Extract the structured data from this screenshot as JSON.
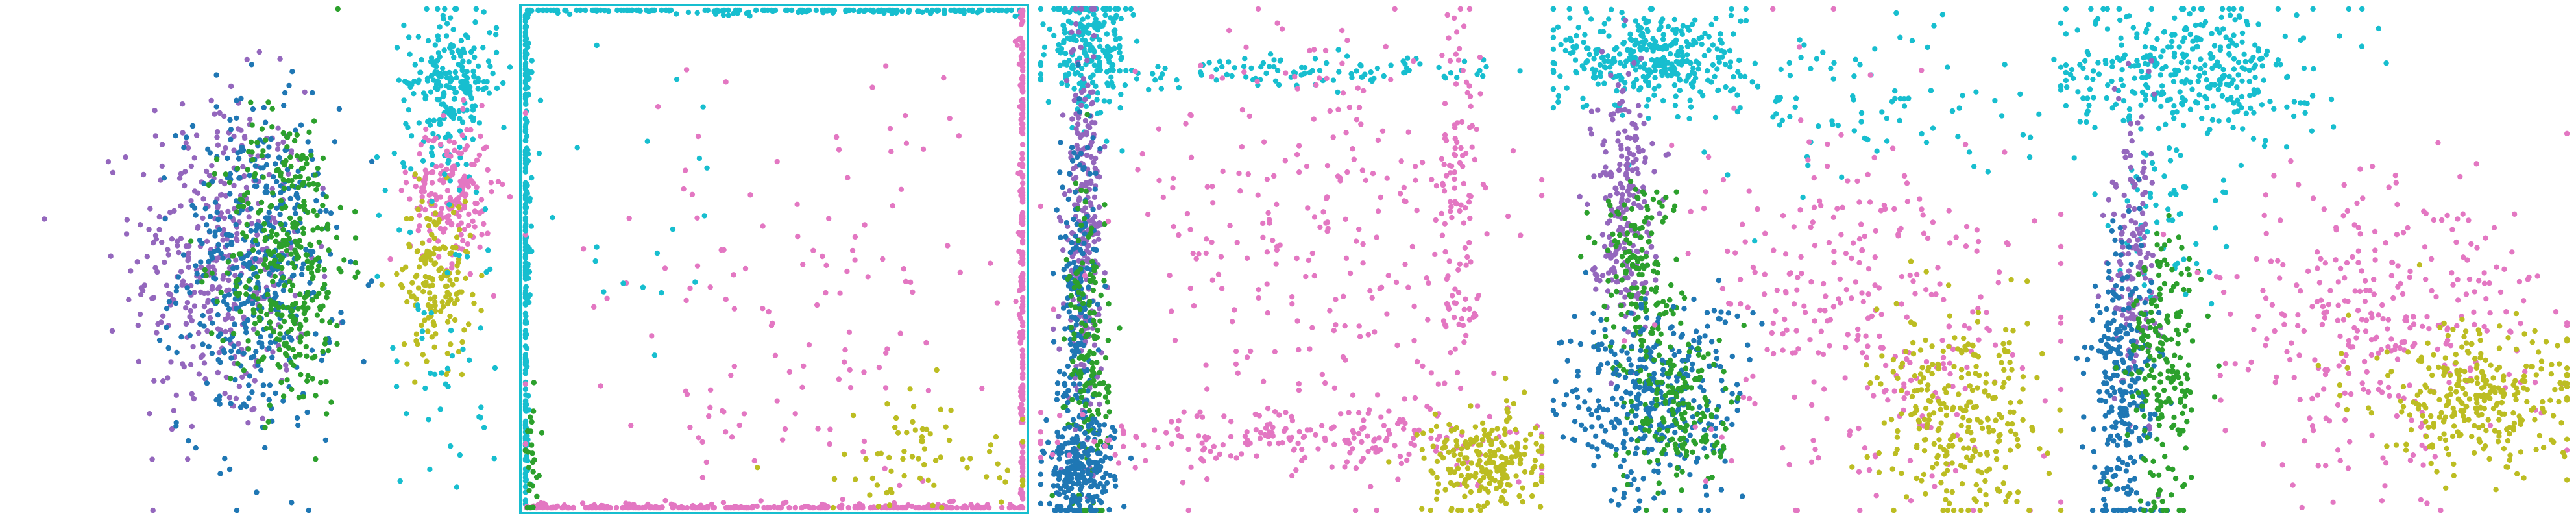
{
  "figure": {
    "description_visible_text": ""
  },
  "colors": {
    "purple": "#9467bd",
    "blue": "#1f77b4",
    "green": "#2ca02c",
    "cyan": "#17becf",
    "pink": "#e377c2",
    "olive": "#bcbd22"
  },
  "chart_data": [
    {
      "type": "scatter",
      "panel": 1,
      "title": "",
      "xlabel": "",
      "ylabel": "",
      "axes_visible": false,
      "grid": false,
      "legend": "none",
      "xlim": [
        0,
        1
      ],
      "ylim": [
        0,
        1
      ],
      "clusters": [
        {
          "color": "purple",
          "cx": 0.43,
          "cy": 0.5,
          "sx": 0.085,
          "sy": 0.17,
          "n": 380
        },
        {
          "color": "blue",
          "cx": 0.5,
          "cy": 0.48,
          "sx": 0.075,
          "sy": 0.16,
          "n": 420
        },
        {
          "color": "green",
          "cx": 0.56,
          "cy": 0.5,
          "sx": 0.06,
          "sy": 0.15,
          "n": 360
        },
        {
          "color": "cyan",
          "cx": 0.88,
          "cy": 0.85,
          "sx": 0.045,
          "sy": 0.07,
          "n": 220
        },
        {
          "color": "pink",
          "cx": 0.88,
          "cy": 0.63,
          "sx": 0.04,
          "sy": 0.07,
          "n": 200
        },
        {
          "color": "olive",
          "cx": 0.85,
          "cy": 0.47,
          "sx": 0.035,
          "sy": 0.08,
          "n": 160
        },
        {
          "color": "cyan",
          "cx": 0.86,
          "cy": 0.4,
          "sx": 0.06,
          "sy": 0.2,
          "n": 60
        }
      ]
    },
    {
      "type": "scatter",
      "panel": 2,
      "title": "",
      "xlabel": "",
      "ylabel": "",
      "axes_visible": false,
      "grid": false,
      "legend": "none",
      "xlim": [
        0,
        1
      ],
      "ylim": [
        0,
        1
      ],
      "frame_points": [
        {
          "side": "left",
          "color": "cyan",
          "n": 260
        },
        {
          "side": "top",
          "color": "cyan",
          "n": 180
        },
        {
          "side": "right",
          "color": "pink",
          "n": 220
        },
        {
          "side": "bottom",
          "color": "pink",
          "n": 240
        }
      ],
      "clusters": [
        {
          "color": "pink",
          "cx": 0.55,
          "cy": 0.35,
          "sx": 0.28,
          "sy": 0.25,
          "n": 160
        },
        {
          "color": "olive",
          "cx": 0.78,
          "cy": 0.1,
          "sx": 0.15,
          "sy": 0.07,
          "n": 70
        },
        {
          "color": "cyan",
          "cx": 0.2,
          "cy": 0.7,
          "sx": 0.2,
          "sy": 0.25,
          "n": 35
        },
        {
          "color": "green",
          "cx": 0.02,
          "cy": 0.1,
          "sx": 0.01,
          "sy": 0.06,
          "n": 25
        }
      ]
    },
    {
      "type": "scatter",
      "panel": 3,
      "title": "",
      "xlabel": "",
      "ylabel": "",
      "axes_visible": false,
      "grid": false,
      "legend": "none",
      "xlim": [
        0,
        1
      ],
      "ylim": [
        0,
        1
      ],
      "clusters": [
        {
          "color": "cyan",
          "cx": 0.1,
          "cy": 0.92,
          "sx": 0.04,
          "sy": 0.06,
          "n": 220
        },
        {
          "color": "cyan",
          "cx": 0.5,
          "cy": 0.87,
          "sx": 0.25,
          "sy": 0.015,
          "n": 120
        },
        {
          "color": "purple",
          "cx": 0.09,
          "cy": 0.55,
          "sx": 0.018,
          "sy": 0.2,
          "n": 260
        },
        {
          "color": "blue",
          "cx": 0.08,
          "cy": 0.4,
          "sx": 0.02,
          "sy": 0.2,
          "n": 200
        },
        {
          "color": "green",
          "cx": 0.1,
          "cy": 0.3,
          "sx": 0.02,
          "sy": 0.18,
          "n": 160
        },
        {
          "color": "blue",
          "cx": 0.08,
          "cy": 0.08,
          "sx": 0.035,
          "sy": 0.05,
          "n": 220
        },
        {
          "color": "pink",
          "cx": 0.55,
          "cy": 0.55,
          "sx": 0.2,
          "sy": 0.22,
          "n": 260
        },
        {
          "color": "pink",
          "cx": 0.55,
          "cy": 0.15,
          "sx": 0.25,
          "sy": 0.03,
          "n": 200
        },
        {
          "color": "pink",
          "cx": 0.83,
          "cy": 0.6,
          "sx": 0.02,
          "sy": 0.2,
          "n": 110
        },
        {
          "color": "olive",
          "cx": 0.88,
          "cy": 0.1,
          "sx": 0.06,
          "sy": 0.05,
          "n": 220
        }
      ]
    },
    {
      "type": "scatter",
      "panel": 4,
      "title": "",
      "xlabel": "",
      "ylabel": "",
      "axes_visible": false,
      "grid": false,
      "legend": "none",
      "xlim": [
        0,
        1
      ],
      "ylim": [
        0,
        1
      ],
      "clusters": [
        {
          "color": "cyan",
          "cx": 0.2,
          "cy": 0.9,
          "sx": 0.09,
          "sy": 0.05,
          "n": 330
        },
        {
          "color": "cyan",
          "cx": 0.55,
          "cy": 0.82,
          "sx": 0.22,
          "sy": 0.08,
          "n": 120
        },
        {
          "color": "purple",
          "cx": 0.14,
          "cy": 0.62,
          "sx": 0.03,
          "sy": 0.12,
          "n": 220
        },
        {
          "color": "green",
          "cx": 0.17,
          "cy": 0.45,
          "sx": 0.04,
          "sy": 0.12,
          "n": 180
        },
        {
          "color": "blue",
          "cx": 0.2,
          "cy": 0.22,
          "sx": 0.09,
          "sy": 0.1,
          "n": 360
        },
        {
          "color": "green",
          "cx": 0.26,
          "cy": 0.2,
          "sx": 0.05,
          "sy": 0.08,
          "n": 160
        },
        {
          "color": "pink",
          "cx": 0.62,
          "cy": 0.4,
          "sx": 0.16,
          "sy": 0.18,
          "n": 300
        },
        {
          "color": "olive",
          "cx": 0.8,
          "cy": 0.18,
          "sx": 0.08,
          "sy": 0.1,
          "n": 280
        }
      ]
    },
    {
      "type": "scatter",
      "panel": 5,
      "title": "",
      "xlabel": "",
      "ylabel": "",
      "axes_visible": false,
      "grid": false,
      "legend": "none",
      "xlim": [
        0,
        1
      ],
      "ylim": [
        0,
        1
      ],
      "clusters": [
        {
          "color": "cyan",
          "cx": 0.25,
          "cy": 0.88,
          "sx": 0.12,
          "sy": 0.07,
          "n": 360
        },
        {
          "color": "cyan",
          "cx": 0.2,
          "cy": 0.6,
          "sx": 0.06,
          "sy": 0.1,
          "n": 60
        },
        {
          "color": "purple",
          "cx": 0.14,
          "cy": 0.5,
          "sx": 0.025,
          "sy": 0.15,
          "n": 150
        },
        {
          "color": "blue",
          "cx": 0.12,
          "cy": 0.25,
          "sx": 0.035,
          "sy": 0.15,
          "n": 260
        },
        {
          "color": "green",
          "cx": 0.2,
          "cy": 0.28,
          "sx": 0.035,
          "sy": 0.14,
          "n": 200
        },
        {
          "color": "pink",
          "cx": 0.62,
          "cy": 0.38,
          "sx": 0.16,
          "sy": 0.15,
          "n": 330
        },
        {
          "color": "olive",
          "cx": 0.82,
          "cy": 0.22,
          "sx": 0.1,
          "sy": 0.07,
          "n": 300
        }
      ]
    }
  ]
}
